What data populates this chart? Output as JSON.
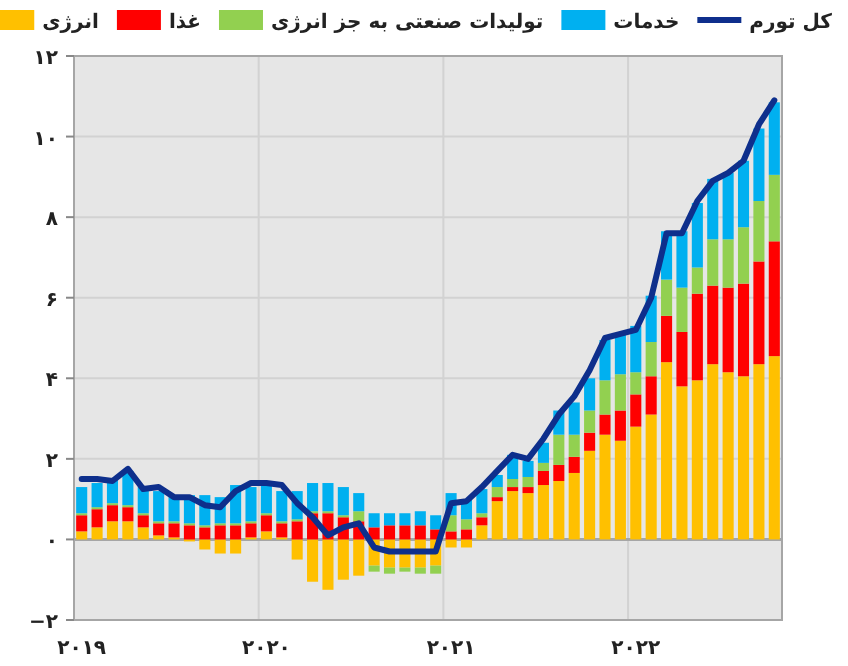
{
  "chart_data": {
    "type": "bar",
    "stacked": true,
    "grid": true,
    "legend": "top",
    "categories": [
      "۲۰۱۹",
      null,
      null,
      null,
      null,
      null,
      null,
      null,
      null,
      null,
      null,
      null,
      "۲۰۲۰",
      null,
      null,
      null,
      null,
      null,
      null,
      null,
      null,
      null,
      null,
      null,
      "۲۰۲۱",
      null,
      null,
      null,
      null,
      null,
      null,
      null,
      null,
      null,
      null,
      null,
      "۲۰۲۲",
      null,
      null,
      null,
      null,
      null,
      null,
      null,
      null,
      null
    ],
    "ylim": [
      -2,
      12
    ],
    "yticks": [
      {
        "value": -2,
        "label": "−۲"
      },
      {
        "value": 0,
        "label": "۰"
      },
      {
        "value": 2,
        "label": "۲"
      },
      {
        "value": 4,
        "label": "۴"
      },
      {
        "value": 6,
        "label": "۶"
      },
      {
        "value": 8,
        "label": "۸"
      },
      {
        "value": 10,
        "label": "۱۰"
      },
      {
        "value": 12,
        "label": "۱۲"
      }
    ],
    "ref_lines": [
      {
        "axis": "y",
        "value": 0,
        "color": "#a6a6a6"
      }
    ],
    "series": [
      {
        "name": "انرژی",
        "color": "#ffc000",
        "values": [
          0.2,
          0.3,
          0.45,
          0.45,
          0.3,
          0.1,
          0.05,
          -0.05,
          -0.25,
          -0.35,
          -0.35,
          0.05,
          0.2,
          0.05,
          -0.5,
          -1.05,
          -1.25,
          -1.0,
          -0.9,
          -0.65,
          -0.7,
          -0.7,
          -0.7,
          -0.65,
          -0.2,
          -0.2,
          0.35,
          0.95,
          1.2,
          1.15,
          1.35,
          1.45,
          1.65,
          2.2,
          2.6,
          2.45,
          2.8,
          3.1,
          4.4,
          3.8,
          3.95,
          4.35,
          4.15,
          4.05,
          4.35,
          4.55
        ]
      },
      {
        "name": "غذا",
        "color": "#ff0000",
        "values": [
          0.4,
          0.45,
          0.4,
          0.35,
          0.3,
          0.3,
          0.35,
          0.35,
          0.3,
          0.35,
          0.35,
          0.35,
          0.4,
          0.35,
          0.45,
          0.65,
          0.65,
          0.55,
          0.45,
          0.3,
          0.35,
          0.35,
          0.35,
          0.25,
          0.2,
          0.25,
          0.2,
          0.1,
          0.1,
          0.15,
          0.35,
          0.4,
          0.4,
          0.45,
          0.5,
          0.75,
          0.8,
          0.95,
          1.15,
          1.35,
          2.15,
          1.95,
          2.1,
          2.3,
          2.55,
          2.85
        ]
      },
      {
        "name": "تولیدات صنعتی به جز انرژی",
        "color": "#92d050",
        "values": [
          0.05,
          0.05,
          0.05,
          0.05,
          0.05,
          0.05,
          0.05,
          0.05,
          0.05,
          0.05,
          0.05,
          0.05,
          0.05,
          0.05,
          0.05,
          0.05,
          0.05,
          0.05,
          0.25,
          -0.15,
          -0.15,
          -0.1,
          -0.15,
          -0.2,
          0.4,
          0.25,
          0.1,
          0.25,
          0.2,
          0.25,
          0.2,
          0.75,
          0.55,
          0.55,
          0.85,
          0.9,
          0.55,
          0.85,
          0.9,
          1.1,
          0.65,
          1.15,
          1.2,
          1.4,
          1.5,
          1.65
        ]
      },
      {
        "name": "خدمات",
        "color": "#00b0f0",
        "values": [
          0.65,
          0.6,
          0.6,
          0.85,
          0.65,
          0.75,
          0.6,
          0.7,
          0.75,
          0.65,
          0.95,
          0.85,
          0.7,
          0.75,
          0.7,
          0.7,
          0.7,
          0.7,
          0.45,
          0.35,
          0.3,
          0.3,
          0.35,
          0.35,
          0.55,
          0.5,
          0.6,
          0.3,
          0.6,
          0.4,
          0.5,
          0.6,
          0.8,
          0.8,
          1.0,
          1.0,
          1.15,
          1.15,
          1.2,
          1.4,
          1.6,
          1.5,
          1.65,
          1.65,
          1.8,
          1.8
        ]
      },
      {
        "name": "کل تورم",
        "type": "line",
        "color": "#0e2f8c",
        "values": [
          1.5,
          1.5,
          1.45,
          1.75,
          1.25,
          1.3,
          1.05,
          1.05,
          0.85,
          0.8,
          1.2,
          1.4,
          1.4,
          1.35,
          0.9,
          0.55,
          0.1,
          0.3,
          0.4,
          -0.2,
          -0.3,
          -0.3,
          -0.3,
          -0.3,
          0.9,
          0.95,
          1.3,
          1.7,
          2.1,
          2.0,
          2.5,
          3.1,
          3.55,
          4.2,
          5.0,
          5.1,
          5.2,
          6.0,
          7.6,
          7.6,
          8.4,
          8.9,
          9.1,
          9.4,
          10.3,
          10.9
        ]
      }
    ]
  }
}
